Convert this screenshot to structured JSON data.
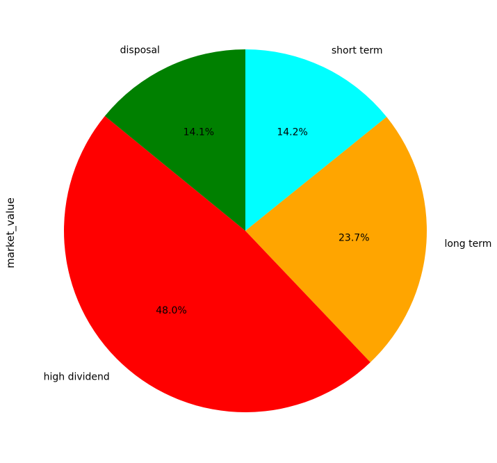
{
  "chart_data": {
    "type": "pie",
    "ylabel": "market_value",
    "start_angle_deg": 90,
    "direction": "clockwise",
    "slices": [
      {
        "label": "short term",
        "value": 14.2,
        "pct_label": "14.2%",
        "color": "#00ffff"
      },
      {
        "label": "long term",
        "value": 23.7,
        "pct_label": "23.7%",
        "color": "#ffa500"
      },
      {
        "label": "high dividend",
        "value": 48.0,
        "pct_label": "48.0%",
        "color": "#ff0000"
      },
      {
        "label": "disposal",
        "value": 14.1,
        "pct_label": "14.1%",
        "color": "#008000"
      }
    ]
  }
}
